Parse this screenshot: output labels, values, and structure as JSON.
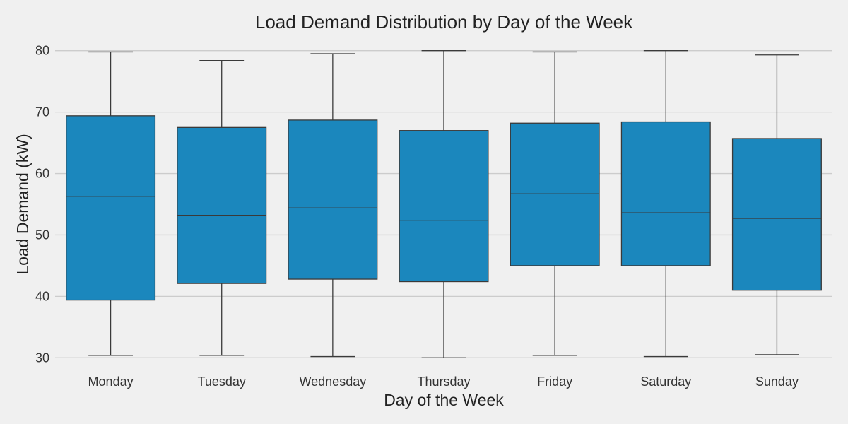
{
  "chart_data": {
    "type": "box",
    "title": "Load Demand Distribution by Day of the Week",
    "xlabel": "Day of the Week",
    "ylabel": "Load Demand (kW)",
    "ylim": [
      29,
      81
    ],
    "yticks": [
      30,
      40,
      50,
      60,
      70,
      80
    ],
    "grid": "horizontal",
    "colors": {
      "box_fill": "#1b87bd",
      "line": "#3a3a3a",
      "grid": "#cccccc",
      "background": "#f0f0f0"
    },
    "categories": [
      "Monday",
      "Tuesday",
      "Wednesday",
      "Thursday",
      "Friday",
      "Saturday",
      "Sunday"
    ],
    "boxes": [
      {
        "min": 30.4,
        "q1": 39.4,
        "median": 56.3,
        "q3": 69.4,
        "max": 79.8
      },
      {
        "min": 30.4,
        "q1": 42.1,
        "median": 53.2,
        "q3": 67.5,
        "max": 78.4
      },
      {
        "min": 30.2,
        "q1": 42.8,
        "median": 54.4,
        "q3": 68.7,
        "max": 79.5
      },
      {
        "min": 30.0,
        "q1": 42.4,
        "median": 52.4,
        "q3": 67.0,
        "max": 80.0
      },
      {
        "min": 30.4,
        "q1": 45.0,
        "median": 56.7,
        "q3": 68.2,
        "max": 79.8
      },
      {
        "min": 30.2,
        "q1": 45.0,
        "median": 53.6,
        "q3": 68.4,
        "max": 80.0
      },
      {
        "min": 30.5,
        "q1": 41.0,
        "median": 52.7,
        "q3": 65.7,
        "max": 79.3
      }
    ]
  }
}
